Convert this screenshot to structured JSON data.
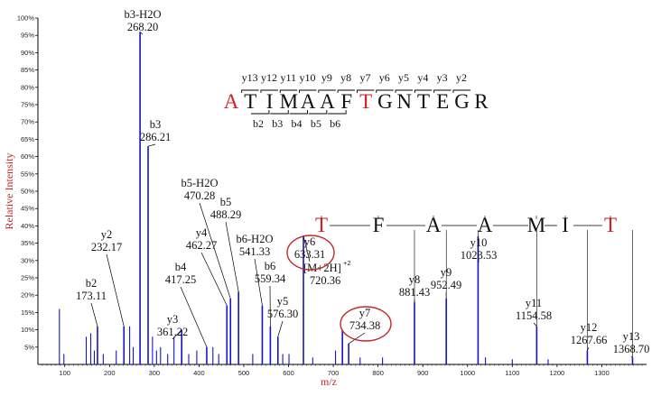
{
  "chart_data": {
    "type": "bar",
    "xlabel": "m/z",
    "ylabel": "Relative Intensity",
    "xlim": [
      40,
      1400
    ],
    "ylim": [
      0,
      100
    ],
    "x_ticks": [
      "100",
      "200",
      "300",
      "400",
      "500",
      "600",
      "700",
      "800",
      "900",
      "1000",
      "1100",
      "1200",
      "1300"
    ],
    "y_ticks": [
      "5%",
      "10%",
      "15%",
      "20%",
      "25%",
      "30%",
      "35%",
      "40%",
      "45%",
      "50%",
      "55%",
      "60%",
      "65%",
      "70%",
      "75%",
      "80%",
      "85%",
      "90%",
      "95%",
      "100%"
    ],
    "bar_color": "#1515c8",
    "peaks": [
      {
        "mz": 268.2,
        "intensity": 96,
        "label": "b3-H2O",
        "value": "268.20"
      },
      {
        "mz": 286.21,
        "intensity": 63,
        "label": "b3",
        "value": "286.21"
      },
      {
        "mz": 173.11,
        "intensity": 11,
        "label": "b2",
        "value": "173.11"
      },
      {
        "mz": 232.17,
        "intensity": 11,
        "label": "y2",
        "value": "232.17"
      },
      {
        "mz": 361.22,
        "intensity": 10,
        "label": "y3",
        "value": "361.22"
      },
      {
        "mz": 417.25,
        "intensity": 5,
        "label": "b4",
        "value": "417.25"
      },
      {
        "mz": 462.27,
        "intensity": 17,
        "label": "y4",
        "value": "462.27"
      },
      {
        "mz": 470.28,
        "intensity": 19,
        "label": "b5-H2O",
        "value": "470.28"
      },
      {
        "mz": 488.29,
        "intensity": 21,
        "label": "b5",
        "value": "488.29"
      },
      {
        "mz": 541.33,
        "intensity": 17,
        "label": "b6-H2O",
        "value": "541.33"
      },
      {
        "mz": 559.34,
        "intensity": 11,
        "label": "b6",
        "value": "559.34"
      },
      {
        "mz": 576.3,
        "intensity": 8,
        "label": "y5",
        "value": "576.30"
      },
      {
        "mz": 633.31,
        "intensity": 37,
        "label": "y6",
        "value": "633.31"
      },
      {
        "mz": 720.36,
        "intensity": 10,
        "label": "[M+2H]",
        "superscript": "+2",
        "value": "720.36"
      },
      {
        "mz": 734.38,
        "intensity": 6,
        "label": "y7",
        "value": "734.38"
      },
      {
        "mz": 881.43,
        "intensity": 18,
        "label": "y8",
        "value": "881.43"
      },
      {
        "mz": 952.49,
        "intensity": 19,
        "label": "y9",
        "value": "952.49"
      },
      {
        "mz": 1023.53,
        "intensity": 37,
        "label": "y10",
        "value": "1023.53"
      },
      {
        "mz": 1154.58,
        "intensity": 11,
        "label": "y11",
        "value": "1154.58"
      },
      {
        "mz": 1267.66,
        "intensity": 4,
        "label": "y12",
        "value": "1267.66"
      },
      {
        "mz": 1368.7,
        "intensity": 2,
        "label": "y13",
        "value": "1368.70"
      }
    ],
    "minor_peaks": [
      {
        "mz": 88,
        "intensity": 16
      },
      {
        "mz": 98,
        "intensity": 3
      },
      {
        "mz": 148,
        "intensity": 8
      },
      {
        "mz": 158,
        "intensity": 9
      },
      {
        "mz": 166,
        "intensity": 4
      },
      {
        "mz": 186,
        "intensity": 3
      },
      {
        "mz": 215,
        "intensity": 4
      },
      {
        "mz": 245,
        "intensity": 11
      },
      {
        "mz": 253,
        "intensity": 5
      },
      {
        "mz": 296,
        "intensity": 8
      },
      {
        "mz": 305,
        "intensity": 4
      },
      {
        "mz": 314,
        "intensity": 5
      },
      {
        "mz": 330,
        "intensity": 3
      },
      {
        "mz": 344,
        "intensity": 8
      },
      {
        "mz": 377,
        "intensity": 3
      },
      {
        "mz": 395,
        "intensity": 4
      },
      {
        "mz": 431,
        "intensity": 5
      },
      {
        "mz": 444,
        "intensity": 3
      },
      {
        "mz": 520,
        "intensity": 3
      },
      {
        "mz": 587,
        "intensity": 3
      },
      {
        "mz": 601,
        "intensity": 3
      },
      {
        "mz": 654,
        "intensity": 2
      },
      {
        "mz": 705,
        "intensity": 4
      },
      {
        "mz": 760,
        "intensity": 2
      },
      {
        "mz": 810,
        "intensity": 2
      },
      {
        "mz": 1040,
        "intensity": 2
      },
      {
        "mz": 1100,
        "intensity": 1.5
      },
      {
        "mz": 1180,
        "intensity": 1.5
      }
    ],
    "sequence": {
      "residues": [
        "A",
        "T",
        "I",
        "M",
        "A",
        "A",
        "F",
        "T",
        "G",
        "N",
        "T",
        "E",
        "G",
        "R"
      ],
      "highlighted": [
        0,
        7
      ],
      "highlight_color": "#d42020",
      "y_ions": [
        "y13",
        "y12",
        "y11",
        "y10",
        "y9",
        "y8",
        "y7",
        "y6",
        "y5",
        "y4",
        "y3",
        "y2"
      ],
      "b_ions": [
        "b2",
        "b3",
        "b4",
        "b5",
        "b6"
      ]
    },
    "sequence_ladder": [
      "T",
      "F",
      "A",
      "A",
      "M",
      "I",
      "T"
    ],
    "circled_peaks": [
      "y6",
      "y7"
    ],
    "axis_label_color": "#c0282c",
    "circle_color": "#c0282c"
  }
}
